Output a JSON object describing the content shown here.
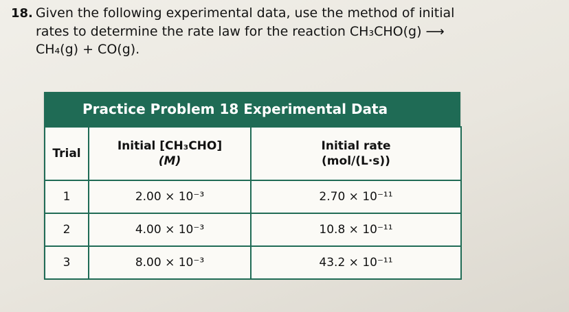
{
  "problem": {
    "number": "18.",
    "line1": "Given the following experimental data, use the method of initial",
    "line2": "rates to determine the rate law for the reaction CH₃CHO(g) ⟶",
    "line3": "CH₄(g) + CO(g)."
  },
  "table": {
    "title": "Practice Problem 18 Experimental Data",
    "headers": {
      "trial": "Trial",
      "conc_line1": "Initial [CH₃CHO]",
      "conc_line2": "(M)",
      "rate_line1": "Initial rate",
      "rate_line2": "(mol/(L·s))"
    },
    "rows": [
      {
        "trial": "1",
        "conc": "2.00 × 10⁻³",
        "rate": "2.70 × 10⁻¹¹"
      },
      {
        "trial": "2",
        "conc": "4.00 × 10⁻³",
        "rate": "10.8 × 10⁻¹¹"
      },
      {
        "trial": "3",
        "conc": "8.00 × 10⁻³",
        "rate": "43.2 × 10⁻¹¹"
      }
    ]
  },
  "colors": {
    "table_accent": "#1f6b55",
    "paper": "#f1efe9"
  }
}
